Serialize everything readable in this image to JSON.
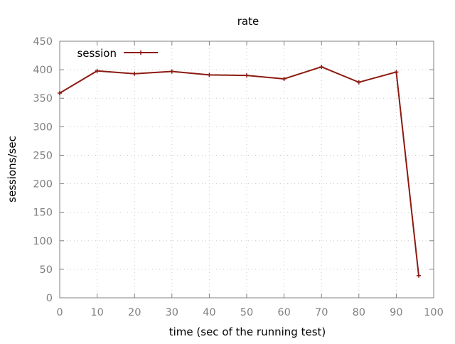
{
  "chart_data": {
    "type": "line",
    "title": "rate",
    "xlabel": "time (sec of the running test)",
    "ylabel": "sessions/sec",
    "xlim": [
      0,
      100
    ],
    "ylim": [
      0,
      450
    ],
    "xticks": [
      0,
      10,
      20,
      30,
      40,
      50,
      60,
      70,
      80,
      90,
      100
    ],
    "yticks": [
      0,
      50,
      100,
      150,
      200,
      250,
      300,
      350,
      400,
      450
    ],
    "grid": true,
    "legend_position": "top-left",
    "series": [
      {
        "name": "session",
        "color": "#8b1a10",
        "x": [
          0,
          10,
          20,
          30,
          40,
          50,
          60,
          70,
          80,
          90,
          96
        ],
        "y": [
          359,
          398,
          393,
          397,
          391,
          390,
          384,
          405,
          378,
          396,
          39
        ]
      }
    ]
  }
}
